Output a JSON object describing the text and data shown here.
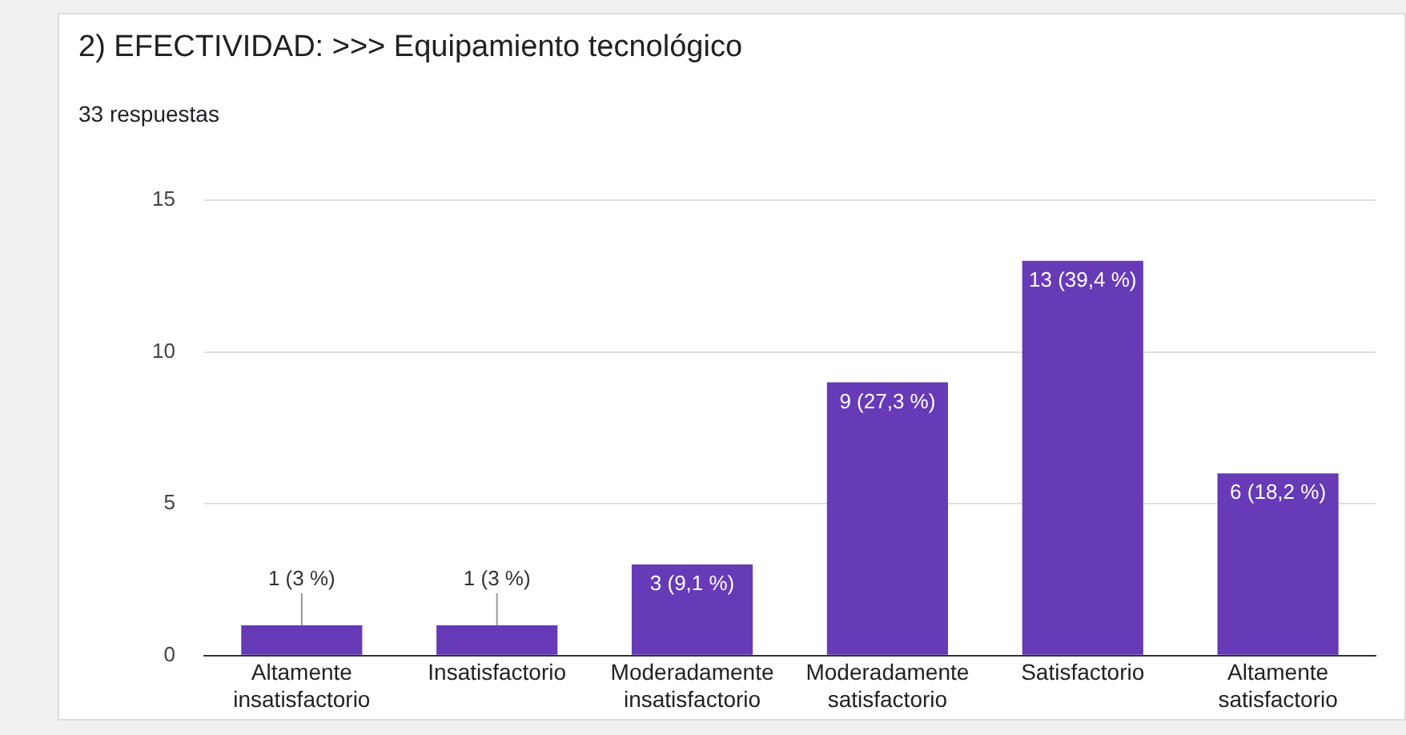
{
  "chart_data": {
    "type": "bar",
    "title": "2) EFECTIVIDAD: >>> Equipamiento tecnológico",
    "subtitle": "33 respuestas",
    "categories": [
      "Altamente insatisfactorio",
      "Insatisfactorio",
      "Moderadamente insatisfactorio",
      "Moderadamente satisfactorio",
      "Satisfactorio",
      "Altamente satisfactorio"
    ],
    "values": [
      1,
      1,
      3,
      9,
      13,
      6
    ],
    "value_labels": [
      "1 (3 %)",
      "1 (3 %)",
      "3 (9,1 %)",
      "9 (27,3 %)",
      "13 (39,4 %)",
      "6 (18,2 %)"
    ],
    "color": "#673ab7",
    "ylim": [
      0,
      15
    ],
    "yticks": [
      0,
      5,
      10,
      15
    ],
    "grid": "y",
    "legend": false
  }
}
